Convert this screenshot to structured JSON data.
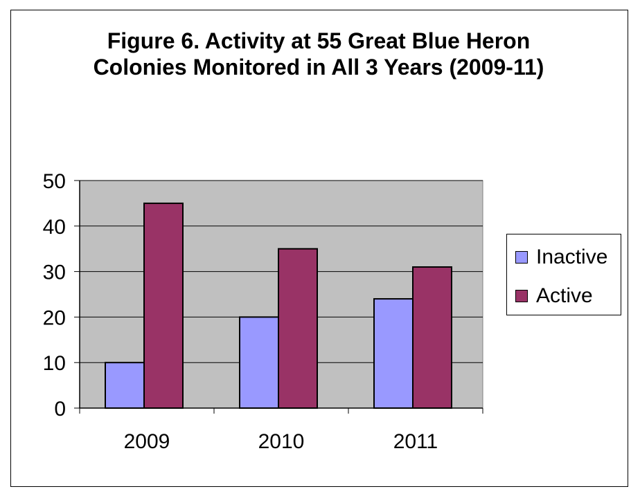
{
  "chart_data": {
    "type": "bar",
    "title": "Figure 6. Activity at 55 Great Blue Heron Colonies Monitored in All 3 Years (2009-11)",
    "xlabel": "",
    "ylabel": "",
    "categories": [
      "2009",
      "2010",
      "2011"
    ],
    "series": [
      {
        "name": "Inactive",
        "values": [
          10,
          20,
          24
        ],
        "color": "#9999ff"
      },
      {
        "name": "Active",
        "values": [
          45,
          35,
          31
        ],
        "color": "#993366"
      }
    ],
    "ylim": [
      0,
      50
    ],
    "yticks": [
      0,
      10,
      20,
      30,
      40,
      50
    ],
    "grid": true,
    "plot_background": "#c0c0c0",
    "legend_position": "right"
  }
}
